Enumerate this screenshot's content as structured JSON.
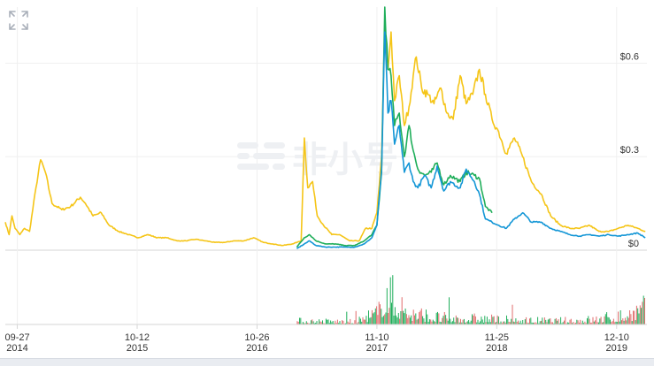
{
  "watermark": {
    "text": "非小号"
  },
  "toolbar": {
    "expand_icon": "fullscreen-expand-icon"
  },
  "colors": {
    "series_yellow": "#f5c518",
    "series_green": "#1fae5a",
    "series_blue": "#1396d6",
    "volume_green": "#1fae5a",
    "volume_red": "#e06c6c",
    "grid": "#f0f0f0",
    "axis": "#d6d6d6"
  },
  "chart_data": {
    "type": "line",
    "title": "",
    "xlabel": "",
    "ylabel": "",
    "ylim": [
      0,
      0.78
    ],
    "grid": true,
    "y_axis_position": "right",
    "y_ticks": [
      {
        "value": 0,
        "label": "$0"
      },
      {
        "value": 0.3,
        "label": "$0.3"
      },
      {
        "value": 0.6,
        "label": "$0.6"
      }
    ],
    "x_ticks": [
      {
        "date": "2014-09-27",
        "label": "09-27",
        "year": "2014"
      },
      {
        "date": "2015-10-12",
        "label": "10-12",
        "year": "2015"
      },
      {
        "date": "2016-10-26",
        "label": "10-26",
        "year": "2016"
      },
      {
        "date": "2017-11-10",
        "label": "11-10",
        "year": "2017"
      },
      {
        "date": "2018-11-25",
        "label": "11-25",
        "year": "2018"
      },
      {
        "date": "2019-12-10",
        "label": "12-10",
        "year": "2019"
      }
    ],
    "x_range": [
      "2014-08-20",
      "2020-03-15"
    ],
    "series": [
      {
        "color": "#f5c518",
        "points": [
          [
            "2014-08-20",
            0.09
          ],
          [
            "2014-09-01",
            0.05
          ],
          [
            "2014-09-10",
            0.11
          ],
          [
            "2014-09-20",
            0.07
          ],
          [
            "2014-10-05",
            0.05
          ],
          [
            "2014-10-20",
            0.07
          ],
          [
            "2014-11-05",
            0.06
          ],
          [
            "2014-11-25",
            0.2
          ],
          [
            "2014-12-10",
            0.29
          ],
          [
            "2014-12-25",
            0.25
          ],
          [
            "2015-01-15",
            0.15
          ],
          [
            "2015-02-15",
            0.13
          ],
          [
            "2015-03-15",
            0.14
          ],
          [
            "2015-04-15",
            0.17
          ],
          [
            "2015-05-01",
            0.15
          ],
          [
            "2015-05-25",
            0.11
          ],
          [
            "2015-06-20",
            0.12
          ],
          [
            "2015-07-15",
            0.08
          ],
          [
            "2015-08-15",
            0.06
          ],
          [
            "2015-09-15",
            0.05
          ],
          [
            "2015-10-15",
            0.04
          ],
          [
            "2015-11-15",
            0.05
          ],
          [
            "2015-12-15",
            0.04
          ],
          [
            "2016-01-15",
            0.04
          ],
          [
            "2016-02-15",
            0.03
          ],
          [
            "2016-03-15",
            0.03
          ],
          [
            "2016-04-15",
            0.035
          ],
          [
            "2016-05-15",
            0.03
          ],
          [
            "2016-06-15",
            0.025
          ],
          [
            "2016-07-15",
            0.025
          ],
          [
            "2016-08-15",
            0.03
          ],
          [
            "2016-09-15",
            0.03
          ],
          [
            "2016-10-15",
            0.04
          ],
          [
            "2016-11-15",
            0.025
          ],
          [
            "2016-12-15",
            0.02
          ],
          [
            "2017-01-15",
            0.015
          ],
          [
            "2017-02-15",
            0.02
          ],
          [
            "2017-03-15",
            0.03
          ],
          [
            "2017-03-25",
            0.36
          ],
          [
            "2017-04-05",
            0.2
          ],
          [
            "2017-04-20",
            0.22
          ],
          [
            "2017-05-05",
            0.11
          ],
          [
            "2017-05-25",
            0.08
          ],
          [
            "2017-06-20",
            0.05
          ],
          [
            "2017-07-15",
            0.05
          ],
          [
            "2017-08-15",
            0.03
          ],
          [
            "2017-09-15",
            0.03
          ],
          [
            "2017-10-05",
            0.07
          ],
          [
            "2017-10-25",
            0.07
          ],
          [
            "2017-11-10",
            0.12
          ],
          [
            "2017-11-25",
            0.3
          ],
          [
            "2017-12-05",
            0.72
          ],
          [
            "2017-12-15",
            0.58
          ],
          [
            "2017-12-25",
            0.7
          ],
          [
            "2018-01-05",
            0.48
          ],
          [
            "2018-01-20",
            0.56
          ],
          [
            "2018-02-05",
            0.4
          ],
          [
            "2018-02-20",
            0.46
          ],
          [
            "2018-03-05",
            0.56
          ],
          [
            "2018-03-15",
            0.62
          ],
          [
            "2018-04-01",
            0.52
          ],
          [
            "2018-04-20",
            0.5
          ],
          [
            "2018-05-10",
            0.47
          ],
          [
            "2018-06-01",
            0.52
          ],
          [
            "2018-06-20",
            0.44
          ],
          [
            "2018-07-10",
            0.42
          ],
          [
            "2018-08-01",
            0.56
          ],
          [
            "2018-08-20",
            0.47
          ],
          [
            "2018-09-10",
            0.5
          ],
          [
            "2018-10-01",
            0.58
          ],
          [
            "2018-10-20",
            0.5
          ],
          [
            "2018-11-10",
            0.42
          ],
          [
            "2018-12-01",
            0.38
          ],
          [
            "2018-12-25",
            0.31
          ],
          [
            "2019-01-20",
            0.36
          ],
          [
            "2019-02-15",
            0.3
          ],
          [
            "2019-03-15",
            0.22
          ],
          [
            "2019-04-15",
            0.18
          ],
          [
            "2019-05-15",
            0.11
          ],
          [
            "2019-06-15",
            0.08
          ],
          [
            "2019-07-15",
            0.07
          ],
          [
            "2019-08-15",
            0.07
          ],
          [
            "2019-09-15",
            0.08
          ],
          [
            "2019-10-15",
            0.06
          ],
          [
            "2019-11-15",
            0.06
          ],
          [
            "2019-12-15",
            0.07
          ],
          [
            "2020-01-15",
            0.08
          ],
          [
            "2020-02-15",
            0.07
          ],
          [
            "2020-03-10",
            0.06
          ]
        ]
      },
      {
        "color": "#1fae5a",
        "points": [
          [
            "2017-03-01",
            0.01
          ],
          [
            "2017-03-25",
            0.04
          ],
          [
            "2017-04-10",
            0.05
          ],
          [
            "2017-05-01",
            0.03
          ],
          [
            "2017-06-01",
            0.02
          ],
          [
            "2017-07-01",
            0.02
          ],
          [
            "2017-08-01",
            0.015
          ],
          [
            "2017-09-01",
            0.015
          ],
          [
            "2017-10-01",
            0.03
          ],
          [
            "2017-10-25",
            0.05
          ],
          [
            "2017-11-10",
            0.08
          ],
          [
            "2017-11-25",
            0.25
          ],
          [
            "2017-12-05",
            0.78
          ],
          [
            "2017-12-15",
            0.58
          ],
          [
            "2017-12-25",
            0.56
          ],
          [
            "2018-01-05",
            0.4
          ],
          [
            "2018-01-20",
            0.44
          ],
          [
            "2018-02-05",
            0.3
          ],
          [
            "2018-02-20",
            0.4
          ],
          [
            "2018-03-05",
            0.32
          ],
          [
            "2018-03-20",
            0.26
          ],
          [
            "2018-04-10",
            0.24
          ],
          [
            "2018-05-01",
            0.25
          ],
          [
            "2018-05-20",
            0.28
          ],
          [
            "2018-06-10",
            0.21
          ],
          [
            "2018-07-01",
            0.24
          ],
          [
            "2018-08-01",
            0.22
          ],
          [
            "2018-08-20",
            0.25
          ],
          [
            "2018-09-15",
            0.24
          ],
          [
            "2018-10-01",
            0.23
          ],
          [
            "2018-10-20",
            0.14
          ],
          [
            "2018-11-10",
            0.12
          ]
        ]
      },
      {
        "color": "#1396d6",
        "points": [
          [
            "2017-03-01",
            0.005
          ],
          [
            "2017-03-25",
            0.02
          ],
          [
            "2017-04-10",
            0.03
          ],
          [
            "2017-05-01",
            0.015
          ],
          [
            "2017-06-01",
            0.01
          ],
          [
            "2017-07-01",
            0.01
          ],
          [
            "2017-08-01",
            0.01
          ],
          [
            "2017-09-01",
            0.01
          ],
          [
            "2017-10-01",
            0.02
          ],
          [
            "2017-10-25",
            0.04
          ],
          [
            "2017-11-10",
            0.08
          ],
          [
            "2017-11-25",
            0.26
          ],
          [
            "2017-12-05",
            0.7
          ],
          [
            "2017-12-15",
            0.44
          ],
          [
            "2017-12-25",
            0.48
          ],
          [
            "2018-01-05",
            0.34
          ],
          [
            "2018-01-20",
            0.4
          ],
          [
            "2018-02-05",
            0.25
          ],
          [
            "2018-02-20",
            0.28
          ],
          [
            "2018-03-05",
            0.22
          ],
          [
            "2018-03-20",
            0.2
          ],
          [
            "2018-04-10",
            0.24
          ],
          [
            "2018-05-01",
            0.2
          ],
          [
            "2018-05-20",
            0.27
          ],
          [
            "2018-06-10",
            0.19
          ],
          [
            "2018-07-01",
            0.22
          ],
          [
            "2018-08-01",
            0.2
          ],
          [
            "2018-08-20",
            0.26
          ],
          [
            "2018-09-15",
            0.22
          ],
          [
            "2018-10-01",
            0.18
          ],
          [
            "2018-10-20",
            0.1
          ],
          [
            "2018-11-10",
            0.09
          ],
          [
            "2018-12-01",
            0.08
          ],
          [
            "2018-12-25",
            0.07
          ],
          [
            "2019-01-20",
            0.1
          ],
          [
            "2019-02-15",
            0.12
          ],
          [
            "2019-03-15",
            0.09
          ],
          [
            "2019-04-15",
            0.09
          ],
          [
            "2019-05-15",
            0.07
          ],
          [
            "2019-06-15",
            0.06
          ],
          [
            "2019-07-15",
            0.05
          ],
          [
            "2019-08-15",
            0.045
          ],
          [
            "2019-09-15",
            0.05
          ],
          [
            "2019-10-15",
            0.045
          ],
          [
            "2019-11-15",
            0.05
          ],
          [
            "2019-12-15",
            0.045
          ],
          [
            "2020-01-15",
            0.05
          ],
          [
            "2020-02-15",
            0.055
          ],
          [
            "2020-03-10",
            0.04
          ]
        ]
      }
    ],
    "volume": {
      "start": "2017-03-01",
      "end": "2020-03-10",
      "level_profile": [
        [
          "2017-03-01",
          0.1
        ],
        [
          "2017-09-01",
          0.08
        ],
        [
          "2017-11-15",
          0.35
        ],
        [
          "2017-12-05",
          0.95
        ],
        [
          "2018-01-15",
          0.55
        ],
        [
          "2018-03-01",
          0.3
        ],
        [
          "2018-06-01",
          0.18
        ],
        [
          "2018-10-01",
          0.16
        ],
        [
          "2019-02-01",
          0.12
        ],
        [
          "2019-06-01",
          0.1
        ],
        [
          "2019-10-01",
          0.14
        ],
        [
          "2020-01-01",
          0.25
        ],
        [
          "2020-03-10",
          0.45
        ]
      ]
    }
  }
}
